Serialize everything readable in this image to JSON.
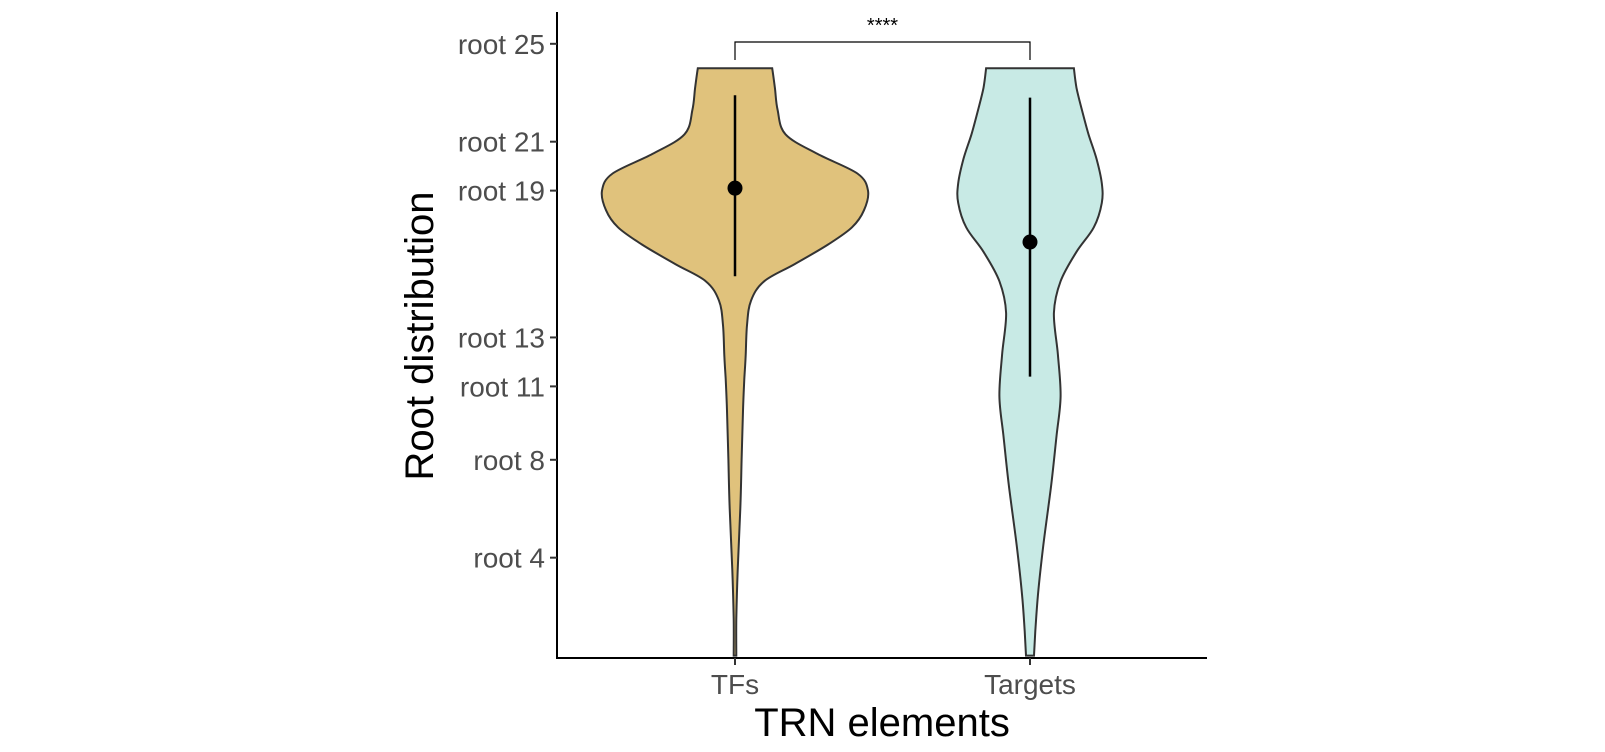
{
  "chart_data": {
    "type": "violin",
    "title": "",
    "xlabel": "TRN elements",
    "ylabel": "Root distribution",
    "x_categories": [
      "TFs",
      "Targets"
    ],
    "y_ticks": [
      {
        "value": 4,
        "label": "root 4"
      },
      {
        "value": 8,
        "label": "root 8"
      },
      {
        "value": 11,
        "label": "root 11"
      },
      {
        "value": 13,
        "label": "root 13"
      },
      {
        "value": 19,
        "label": "root 19"
      },
      {
        "value": 21,
        "label": "root 21"
      },
      {
        "value": 25,
        "label": "root 25"
      }
    ],
    "ylim": [
      -0.1,
      26.3
    ],
    "grid": false,
    "significance": {
      "from": "TFs",
      "to": "Targets",
      "label": "****"
    },
    "series": [
      {
        "category": "TFs",
        "fill": "#E0C27C",
        "mean": 19.1,
        "interval": [
          15.5,
          22.9
        ],
        "y_range": [
          0,
          24
        ],
        "density": [
          [
            0.0,
            0.01
          ],
          [
            1.5,
            0.01
          ],
          [
            3.5,
            0.02
          ],
          [
            6.0,
            0.04
          ],
          [
            8.0,
            0.05
          ],
          [
            10.0,
            0.06
          ],
          [
            11.3,
            0.07
          ],
          [
            12.2,
            0.08
          ],
          [
            13.5,
            0.09
          ],
          [
            14.5,
            0.12
          ],
          [
            15.3,
            0.22
          ],
          [
            16.0,
            0.45
          ],
          [
            16.8,
            0.7
          ],
          [
            17.5,
            0.88
          ],
          [
            18.2,
            0.97
          ],
          [
            19.0,
            1.0
          ],
          [
            19.7,
            0.92
          ],
          [
            20.5,
            0.62
          ],
          [
            21.3,
            0.38
          ],
          [
            22.3,
            0.32
          ],
          [
            23.2,
            0.3
          ],
          [
            24.0,
            0.28
          ]
        ]
      },
      {
        "category": "Targets",
        "fill": "#C8EAE5",
        "mean": 16.9,
        "interval": [
          11.4,
          22.8
        ],
        "y_range": [
          0,
          24
        ],
        "density": [
          [
            0.0,
            0.03
          ],
          [
            1.0,
            0.04
          ],
          [
            2.5,
            0.06
          ],
          [
            4.5,
            0.1
          ],
          [
            7.0,
            0.16
          ],
          [
            9.0,
            0.2
          ],
          [
            10.6,
            0.23
          ],
          [
            12.3,
            0.21
          ],
          [
            14.0,
            0.18
          ],
          [
            15.3,
            0.23
          ],
          [
            16.5,
            0.35
          ],
          [
            17.5,
            0.48
          ],
          [
            18.5,
            0.54
          ],
          [
            19.3,
            0.54
          ],
          [
            20.3,
            0.5
          ],
          [
            21.3,
            0.44
          ],
          [
            22.3,
            0.39
          ],
          [
            23.2,
            0.35
          ],
          [
            24.0,
            0.33
          ]
        ]
      }
    ]
  }
}
